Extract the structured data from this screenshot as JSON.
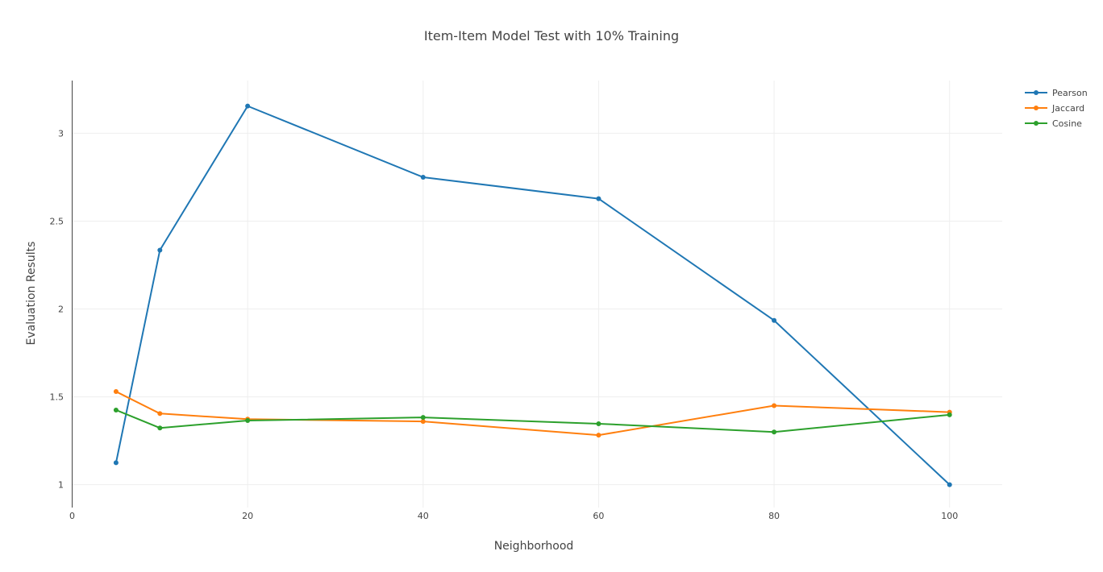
{
  "chart_data": {
    "type": "line",
    "title": "Item-Item Model Test with 10% Training",
    "xlabel": "Neighborhood",
    "ylabel": "Evaluation Results",
    "xlim": [
      0,
      106
    ],
    "ylim": [
      0.87,
      3.3
    ],
    "x_ticks": [
      0,
      20,
      40,
      60,
      80,
      100
    ],
    "y_ticks": [
      1,
      1.5,
      2,
      2.5,
      3
    ],
    "grid": true,
    "legend_position": "top-right",
    "x": [
      5,
      10,
      20,
      40,
      60,
      80,
      100
    ],
    "series": [
      {
        "name": "Pearson",
        "color": "#1f77b4",
        "values": [
          1.125,
          2.335,
          3.155,
          2.75,
          2.628,
          1.935,
          1.0
        ]
      },
      {
        "name": "Jaccard",
        "color": "#ff7f0e",
        "values": [
          1.53,
          1.405,
          1.373,
          1.36,
          1.282,
          1.45,
          1.413
        ]
      },
      {
        "name": "Cosine",
        "color": "#2ca02c",
        "values": [
          1.425,
          1.323,
          1.365,
          1.383,
          1.347,
          1.3,
          1.398
        ]
      }
    ]
  }
}
